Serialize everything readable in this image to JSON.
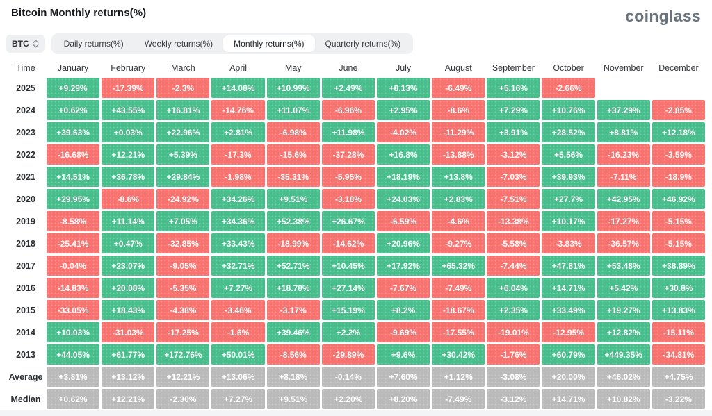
{
  "header": {
    "title": "Bitcoin Monthly returns(%)",
    "logo_text": "coinglass"
  },
  "toolbar": {
    "symbol_selector": "BTC",
    "tabs": [
      {
        "label": "Daily returns(%)",
        "active": false
      },
      {
        "label": "Weekly returns(%)",
        "active": false
      },
      {
        "label": "Monthly returns(%)",
        "active": true
      },
      {
        "label": "Quarterly returns(%)",
        "active": false
      }
    ]
  },
  "colors": {
    "positive": "#47be8c",
    "negative": "#f8736f",
    "neutral": "#bababa"
  },
  "chart_data": {
    "type": "heatmap",
    "title": "Bitcoin Monthly returns(%)",
    "columns": [
      "Time",
      "January",
      "February",
      "March",
      "April",
      "May",
      "June",
      "July",
      "August",
      "September",
      "October",
      "November",
      "December"
    ],
    "rows": [
      {
        "label": "2025",
        "neutral": false,
        "values": [
          "+9.29%",
          "-17.39%",
          "-2.3%",
          "+14.08%",
          "+10.99%",
          "+2.49%",
          "+8.13%",
          "-6.49%",
          "+5.16%",
          "-2.66%",
          null,
          null
        ]
      },
      {
        "label": "2024",
        "neutral": false,
        "values": [
          "+0.62%",
          "+43.55%",
          "+16.81%",
          "-14.76%",
          "+11.07%",
          "-6.96%",
          "+2.95%",
          "-8.6%",
          "+7.29%",
          "+10.76%",
          "+37.29%",
          "-2.85%"
        ]
      },
      {
        "label": "2023",
        "neutral": false,
        "values": [
          "+39.63%",
          "+0.03%",
          "+22.96%",
          "+2.81%",
          "-6.98%",
          "+11.98%",
          "-4.02%",
          "-11.29%",
          "+3.91%",
          "+28.52%",
          "+8.81%",
          "+12.18%"
        ]
      },
      {
        "label": "2022",
        "neutral": false,
        "values": [
          "-16.68%",
          "+12.21%",
          "+5.39%",
          "-17.3%",
          "-15.6%",
          "-37.28%",
          "+16.8%",
          "-13.88%",
          "-3.12%",
          "+5.56%",
          "-16.23%",
          "-3.59%"
        ]
      },
      {
        "label": "2021",
        "neutral": false,
        "values": [
          "+14.51%",
          "+36.78%",
          "+29.84%",
          "-1.98%",
          "-35.31%",
          "-5.95%",
          "+18.19%",
          "+13.8%",
          "-7.03%",
          "+39.93%",
          "-7.11%",
          "-18.9%"
        ]
      },
      {
        "label": "2020",
        "neutral": false,
        "values": [
          "+29.95%",
          "-8.6%",
          "-24.92%",
          "+34.26%",
          "+9.51%",
          "-3.18%",
          "+24.03%",
          "+2.83%",
          "-7.51%",
          "+27.7%",
          "+42.95%",
          "+46.92%"
        ]
      },
      {
        "label": "2019",
        "neutral": false,
        "values": [
          "-8.58%",
          "+11.14%",
          "+7.05%",
          "+34.36%",
          "+52.38%",
          "+26.67%",
          "-6.59%",
          "-4.6%",
          "-13.38%",
          "+10.17%",
          "-17.27%",
          "-5.15%"
        ]
      },
      {
        "label": "2018",
        "neutral": false,
        "values": [
          "-25.41%",
          "+0.47%",
          "-32.85%",
          "+33.43%",
          "-18.99%",
          "-14.62%",
          "+20.96%",
          "-9.27%",
          "-5.58%",
          "-3.83%",
          "-36.57%",
          "-5.15%"
        ]
      },
      {
        "label": "2017",
        "neutral": false,
        "values": [
          "-0.04%",
          "+23.07%",
          "-9.05%",
          "+32.71%",
          "+52.71%",
          "+10.45%",
          "+17.92%",
          "+65.32%",
          "-7.44%",
          "+47.81%",
          "+53.48%",
          "+38.89%"
        ]
      },
      {
        "label": "2016",
        "neutral": false,
        "values": [
          "-14.83%",
          "+20.08%",
          "-5.35%",
          "+7.27%",
          "+18.78%",
          "+27.14%",
          "-7.67%",
          "-7.49%",
          "+6.04%",
          "+14.71%",
          "+5.42%",
          "+30.8%"
        ]
      },
      {
        "label": "2015",
        "neutral": false,
        "values": [
          "-33.05%",
          "+18.43%",
          "-4.38%",
          "-3.46%",
          "-3.17%",
          "+15.19%",
          "+8.2%",
          "-18.67%",
          "+2.35%",
          "+33.49%",
          "+19.27%",
          "+13.83%"
        ]
      },
      {
        "label": "2014",
        "neutral": false,
        "values": [
          "+10.03%",
          "-31.03%",
          "-17.25%",
          "-1.6%",
          "+39.46%",
          "+2.2%",
          "-9.69%",
          "-17.55%",
          "-19.01%",
          "-12.95%",
          "+12.82%",
          "-15.11%"
        ]
      },
      {
        "label": "2013",
        "neutral": false,
        "values": [
          "+44.05%",
          "+61.77%",
          "+172.76%",
          "+50.01%",
          "-8.56%",
          "-29.89%",
          "+9.6%",
          "+30.42%",
          "-1.76%",
          "+60.79%",
          "+449.35%",
          "-34.81%"
        ]
      },
      {
        "label": "Average",
        "neutral": true,
        "values": [
          "+3.81%",
          "+13.12%",
          "+12.21%",
          "+13.06%",
          "+8.18%",
          "-0.14%",
          "+7.60%",
          "+1.12%",
          "-3.08%",
          "+20.00%",
          "+46.02%",
          "+4.75%"
        ]
      },
      {
        "label": "Median",
        "neutral": true,
        "values": [
          "+0.62%",
          "+12.21%",
          "-2.30%",
          "+7.27%",
          "+9.51%",
          "+2.20%",
          "+8.20%",
          "-7.49%",
          "-3.12%",
          "+14.71%",
          "+10.82%",
          "-3.22%"
        ]
      }
    ]
  }
}
